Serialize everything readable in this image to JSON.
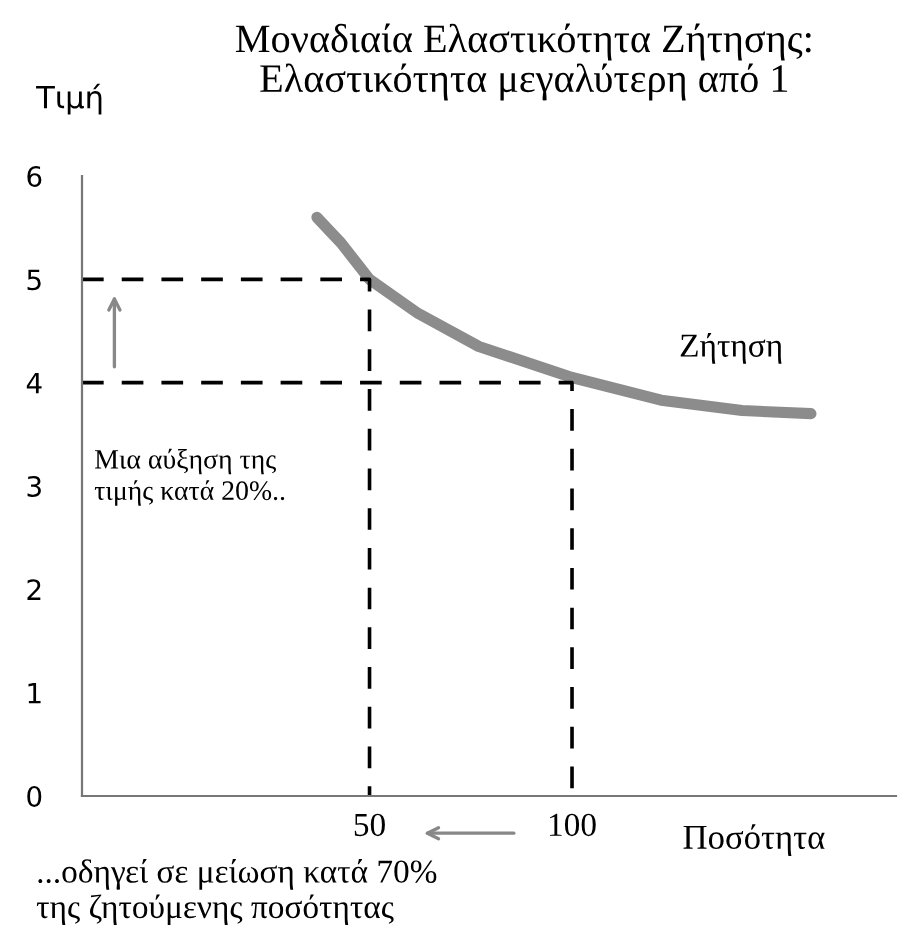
{
  "chart_data": {
    "type": "line",
    "title": "Μοναδιαία Ελαστικότητα Ζήτησης:\nΕλαστικότητα μεγαλύτερη από 1",
    "ylabel": "Τιμή",
    "xlabel": "Ποσότητα",
    "xlim": [
      -21,
      180
    ],
    "ylim": [
      0,
      6
    ],
    "xticks": [
      50,
      100
    ],
    "yticks": [
      0,
      1,
      2,
      3,
      4,
      5,
      6
    ],
    "grid": false,
    "legend": false,
    "series": [
      {
        "name": "Ζήτηση",
        "color": "#8c8c8c",
        "x": [
          37,
          43,
          50,
          62,
          77,
          100,
          122,
          142,
          159
        ],
        "values": [
          5.6,
          5.35,
          5.0,
          4.67,
          4.35,
          4.05,
          3.83,
          3.73,
          3.7
        ]
      },
      {
        "color": "#000000",
        "line_style": "dashed",
        "x": [
          -21,
          50,
          50
        ],
        "values": [
          5,
          5,
          0
        ]
      },
      {
        "color": "#000000",
        "line_style": "dashed",
        "x": [
          -21,
          100,
          100
        ],
        "values": [
          4,
          4,
          0
        ]
      }
    ],
    "annotations": [
      "Μια αύξηση της\nτιμής κατά 20%..",
      "...οδηγεί σε μείωση κατά 70%\nτης ζητούμενης ποσότητας"
    ]
  }
}
